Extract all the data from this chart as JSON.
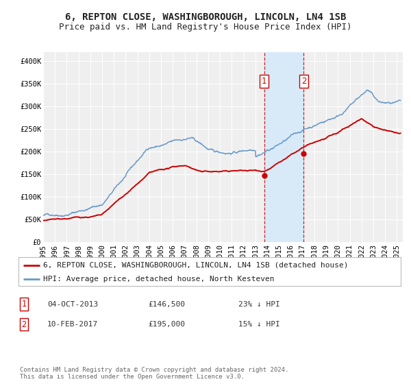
{
  "title": "6, REPTON CLOSE, WASHINGBOROUGH, LINCOLN, LN4 1SB",
  "subtitle": "Price paid vs. HM Land Registry's House Price Index (HPI)",
  "ylim": [
    0,
    420000
  ],
  "xlim_start": 1995.0,
  "xlim_end": 2025.5,
  "background_color": "#ffffff",
  "plot_bg_color": "#efefef",
  "grid_color": "#ffffff",
  "red_line_color": "#cc0000",
  "blue_line_color": "#6699cc",
  "vline_color": "#cc0000",
  "shade_color": "#d8eaf8",
  "marker1_date": 2013.75,
  "marker2_date": 2017.1,
  "marker1_value": 146500,
  "marker2_value": 195000,
  "legend_label_red": "6, REPTON CLOSE, WASHINGBOROUGH, LINCOLN, LN4 1SB (detached house)",
  "legend_label_blue": "HPI: Average price, detached house, North Kesteven",
  "annotation1_text": "04-OCT-2013",
  "annotation1_price": "£146,500",
  "annotation1_hpi": "23% ↓ HPI",
  "annotation2_text": "10-FEB-2017",
  "annotation2_price": "£195,000",
  "annotation2_hpi": "15% ↓ HPI",
  "footer": "Contains HM Land Registry data © Crown copyright and database right 2024.\nThis data is licensed under the Open Government Licence v3.0.",
  "title_fontsize": 10,
  "subtitle_fontsize": 9,
  "tick_fontsize": 7.5,
  "legend_fontsize": 8,
  "annotation_fontsize": 8,
  "footer_fontsize": 6.5
}
